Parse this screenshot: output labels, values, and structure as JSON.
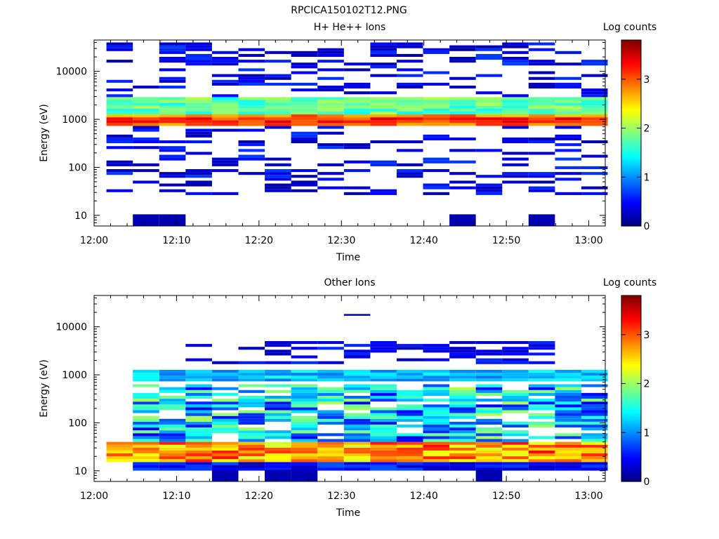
{
  "figure_title": "RPCICA150102T12.PNG",
  "chart_data": [
    {
      "type": "heatmap",
      "title": "H+ He++ Ions",
      "xlabel": "Time",
      "ylabel": "Energy (eV)",
      "x_ticks": [
        "12:00",
        "12:10",
        "12:20",
        "12:30",
        "12:40",
        "12:50",
        "13:00"
      ],
      "y_ticks": [
        "10",
        "100",
        "1000",
        "10000"
      ],
      "xlim_minutes": [
        0,
        62
      ],
      "ylim_eV": [
        6,
        45000
      ],
      "y_scale": "log",
      "time_bins_start_min": [
        1.5,
        4.7,
        7.9,
        11.1,
        14.3,
        17.5,
        20.7,
        23.9,
        27.1,
        30.3,
        33.5,
        36.7,
        39.9,
        43.1,
        46.3,
        49.5,
        52.7,
        55.9,
        59.1
      ],
      "time_bin_width_min": 3.2,
      "peak_band_eV": [
        700,
        1300
      ],
      "peak_log_counts_typical": 3.2,
      "low_energy_fill_eV": [
        5.8,
        10.5
      ],
      "low_energy_fill_bins": [
        1,
        2,
        13,
        16
      ],
      "colorbar": {
        "label": "Log counts",
        "ticks": [
          "0",
          "1",
          "2",
          "3"
        ],
        "range": [
          0,
          3.8
        ]
      }
    },
    {
      "type": "heatmap",
      "title": "Other Ions",
      "xlabel": "Time",
      "ylabel": "Energy (eV)",
      "x_ticks": [
        "12:00",
        "12:10",
        "12:20",
        "12:30",
        "12:40",
        "12:50",
        "13:00"
      ],
      "y_ticks": [
        "10",
        "100",
        "1000",
        "10000"
      ],
      "xlim_minutes": [
        0,
        62
      ],
      "ylim_eV": [
        6,
        45000
      ],
      "y_scale": "log",
      "time_bins_start_min": [
        1.5,
        4.7,
        7.9,
        11.1,
        14.3,
        17.5,
        20.7,
        23.9,
        27.1,
        30.3,
        33.5,
        36.7,
        39.9,
        43.1,
        46.3,
        49.5,
        52.7,
        55.9,
        59.1
      ],
      "time_bin_width_min": 3.2,
      "peak_band_eV": [
        18,
        40
      ],
      "peak_log_counts_typical": 3.0,
      "isolated_bin_eV": [
        17000,
        18500
      ],
      "isolated_bin_index": 9,
      "low_energy_fill_eV": [
        5.8,
        10.5
      ],
      "low_energy_fill_bins": [
        4,
        6,
        7,
        14
      ],
      "colorbar": {
        "label": "Log counts",
        "ticks": [
          "0",
          "1",
          "2",
          "3"
        ],
        "range": [
          0,
          3.8
        ]
      }
    }
  ]
}
